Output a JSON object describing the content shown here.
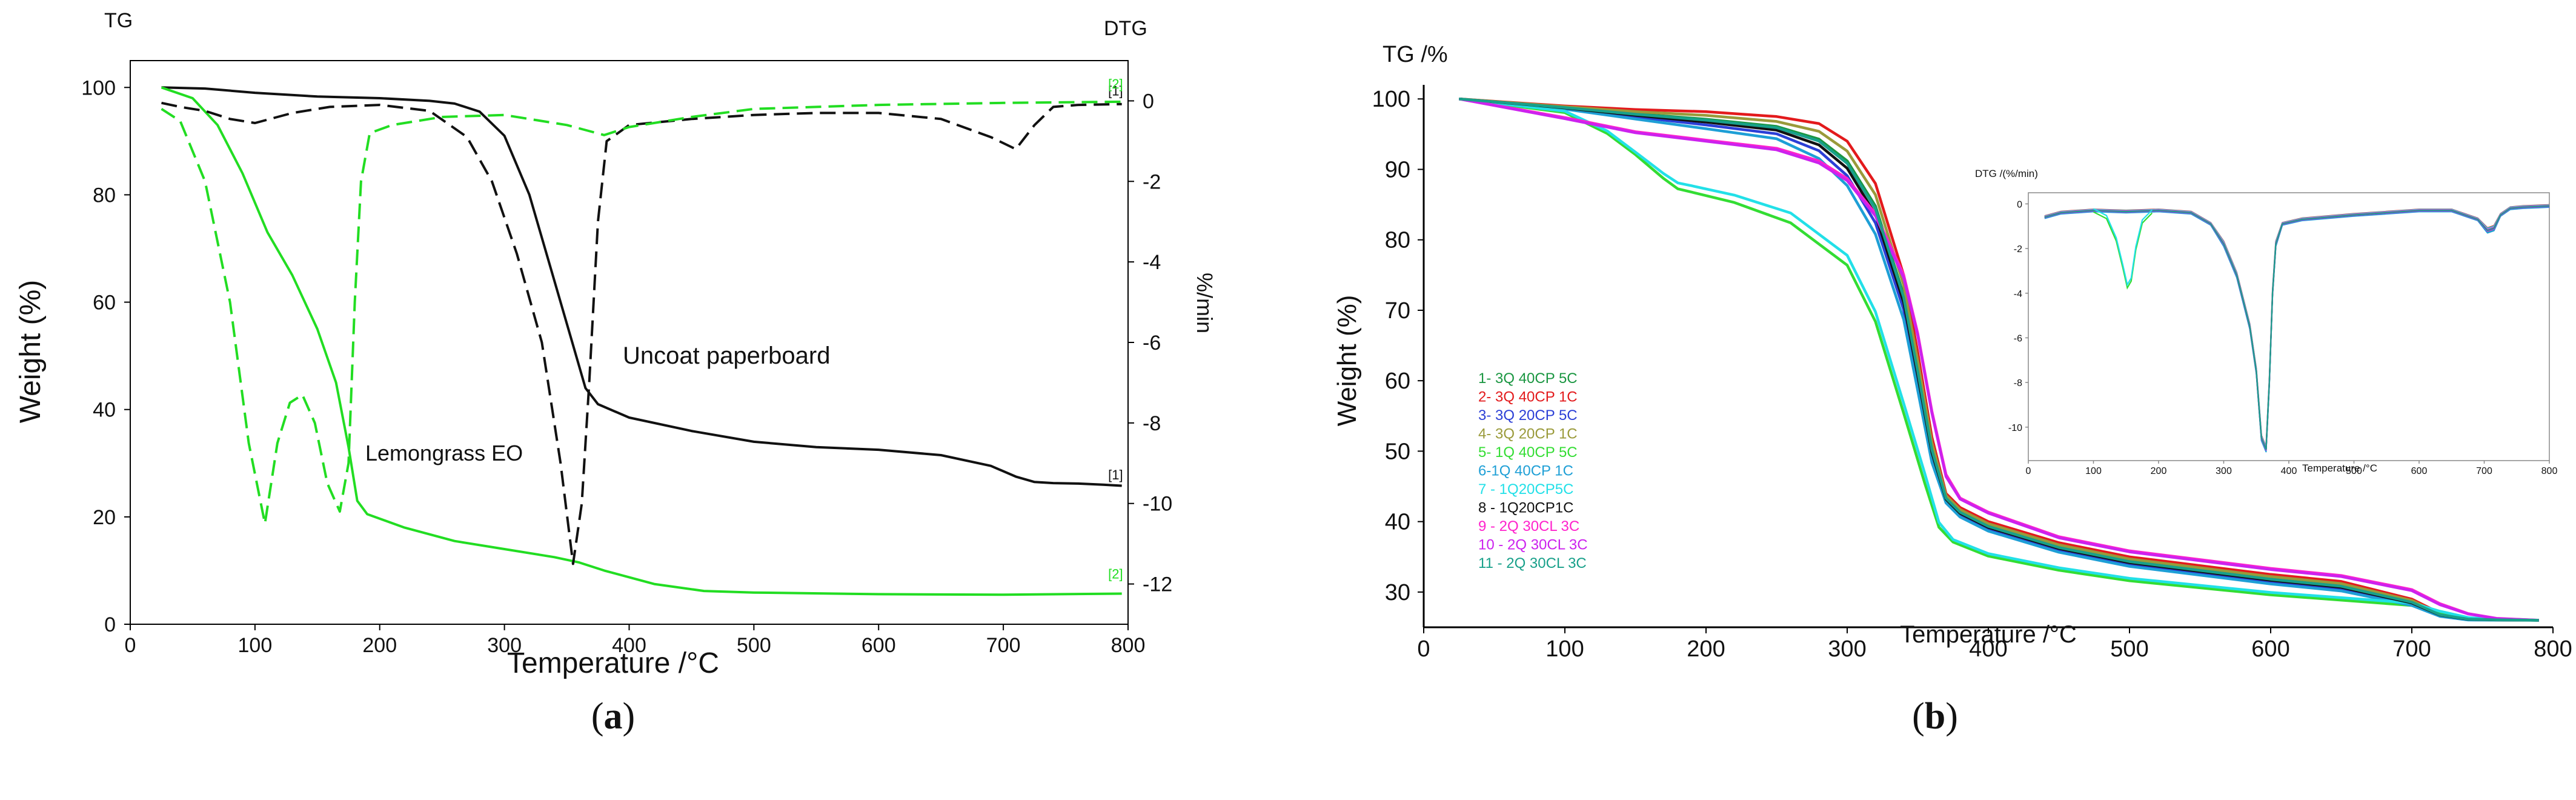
{
  "figure": {
    "caption_a": "(a)",
    "caption_b": "(b)",
    "caption_a_letter": "a",
    "caption_b_letter": "b"
  },
  "colors": {
    "green": "#22dd22",
    "black": "#111111",
    "axis": "#000000",
    "inset_axis": "#888888"
  },
  "chart_data": [
    {
      "id": "a",
      "type": "line",
      "title": "",
      "corner_left": "TG",
      "corner_right": "DTG",
      "xlabel": "Temperature /°C",
      "ylabel": "Weight (%)",
      "y2label": "%/min",
      "xlim": [
        0,
        800
      ],
      "ylim": [
        0,
        105
      ],
      "y2lim": [
        -13,
        1
      ],
      "xticks": [
        0,
        100,
        200,
        300,
        400,
        500,
        600,
        700,
        800
      ],
      "yticks": [
        0,
        20,
        40,
        60,
        80,
        100
      ],
      "y2ticks": [
        0,
        -2,
        -4,
        -6,
        -8,
        -10,
        -12
      ],
      "grid": false,
      "annotations": [
        {
          "text": "Uncoat paperboard",
          "x": 400,
          "y": 49
        },
        {
          "text": "Lemongrass EO",
          "x": 190,
          "y": 30
        }
      ],
      "end_markers": [
        {
          "text": "[1]",
          "x": 790,
          "y": 27,
          "series": "Uncoat paperboard TG"
        },
        {
          "text": "[2]",
          "x": 790,
          "y": 8.5,
          "series": "Lemongrass EO TG"
        },
        {
          "text": "[1]",
          "x": 790,
          "y": 98.5,
          "series": "Uncoat paperboard DTG"
        },
        {
          "text": "[2]",
          "x": 790,
          "y": 99.8,
          "series": "Lemongrass EO DTG"
        }
      ],
      "series": [
        {
          "name": "Uncoat paperboard TG",
          "axis": "y",
          "style": "solid",
          "color": "#111111",
          "x": [
            25,
            60,
            100,
            150,
            200,
            240,
            260,
            280,
            300,
            320,
            340,
            355,
            365,
            375,
            400,
            450,
            500,
            550,
            600,
            650,
            690,
            710,
            725,
            740,
            760,
            780,
            795
          ],
          "y": [
            100,
            99.8,
            99,
            98.3,
            98,
            97.5,
            97,
            95.5,
            91,
            80,
            64,
            52,
            44,
            41,
            38.5,
            36,
            34,
            33,
            32.5,
            31.5,
            29.5,
            27.5,
            26.5,
            26.3,
            26.2,
            26,
            25.8
          ]
        },
        {
          "name": "Lemongrass EO TG",
          "axis": "y",
          "style": "solid",
          "color": "#22dd22",
          "x": [
            25,
            50,
            70,
            90,
            110,
            130,
            150,
            165,
            175,
            182,
            190,
            220,
            260,
            300,
            340,
            360,
            380,
            420,
            460,
            500,
            600,
            700,
            795
          ],
          "y": [
            100,
            98,
            93,
            84,
            73,
            65,
            55,
            45,
            33,
            23,
            20.5,
            18,
            15.5,
            14,
            12.5,
            11.5,
            10,
            7.5,
            6.2,
            5.9,
            5.6,
            5.5,
            5.7
          ]
        },
        {
          "name": "Uncoat paperboard DTG",
          "axis": "y2",
          "style": "dashed",
          "color": "#111111",
          "x": [
            25,
            40,
            60,
            80,
            100,
            130,
            160,
            200,
            240,
            270,
            290,
            310,
            330,
            345,
            355,
            362,
            368,
            375,
            382,
            400,
            450,
            500,
            550,
            600,
            650,
            690,
            710,
            725,
            740,
            760,
            795
          ],
          "y": [
            -0.05,
            -0.15,
            -0.25,
            -0.45,
            -0.55,
            -0.3,
            -0.15,
            -0.1,
            -0.25,
            -0.9,
            -2,
            -3.8,
            -6,
            -9,
            -11.5,
            -10,
            -7,
            -3,
            -1,
            -0.6,
            -0.45,
            -0.35,
            -0.3,
            -0.3,
            -0.45,
            -0.9,
            -1.2,
            -0.6,
            -0.15,
            -0.1,
            -0.08
          ]
        },
        {
          "name": "Lemongrass EO DTG",
          "axis": "y2",
          "style": "dashed",
          "color": "#22dd22",
          "x": [
            25,
            40,
            60,
            80,
            95,
            108,
            118,
            128,
            138,
            148,
            158,
            168,
            175,
            180,
            185,
            192,
            210,
            250,
            300,
            350,
            380,
            400,
            450,
            500,
            600,
            700,
            795
          ],
          "y": [
            -0.2,
            -0.5,
            -2,
            -5,
            -8.5,
            -10.5,
            -8.5,
            -7.5,
            -7.3,
            -8,
            -9.5,
            -10.2,
            -9,
            -5,
            -2,
            -0.8,
            -0.6,
            -0.4,
            -0.35,
            -0.6,
            -0.85,
            -0.65,
            -0.4,
            -0.2,
            -0.1,
            -0.05,
            -0.02
          ]
        }
      ]
    },
    {
      "id": "b",
      "type": "line",
      "title": "",
      "corner_left": "TG /%",
      "xlabel": "Temperature /°C",
      "ylabel": "Weight (%)",
      "xlim": [
        0,
        800
      ],
      "ylim": [
        25,
        102
      ],
      "xticks": [
        0,
        100,
        200,
        300,
        400,
        500,
        600,
        700,
        800
      ],
      "yticks": [
        30,
        40,
        50,
        60,
        70,
        80,
        90,
        100
      ],
      "grid": false,
      "legend_position": "left-middle",
      "series": [
        {
          "name": "1- 3Q 40CP 5C",
          "color": "#1a9641",
          "shape": "A",
          "p": 0.6
        },
        {
          "name": "2- 3Q 40CP 1C",
          "color": "#e31a1c",
          "shape": "A",
          "p": 1.0
        },
        {
          "name": "3- 3Q 20CP 5C",
          "color": "#2b3fd6",
          "shape": "A",
          "p": 0.3
        },
        {
          "name": "4- 3Q 20CP 1C",
          "color": "#9a9a3a",
          "shape": "A",
          "p": 0.8
        },
        {
          "name": "5- 1Q 40CP 5C",
          "color": "#33dd33",
          "shape": "B",
          "p": 0.2
        },
        {
          "name": "6-1Q 40CP 1C",
          "color": "#1e9fd6",
          "shape": "A",
          "p": 0.1
        },
        {
          "name": "7 - 1Q20CP5C",
          "color": "#22e0e8",
          "shape": "B",
          "p": 0.9
        },
        {
          "name": "8 - 1Q20CP1C",
          "color": "#111111",
          "shape": "A",
          "p": 0.45
        },
        {
          "name": "9 - 2Q 30CL 3C",
          "color": "#ff22cc",
          "shape": "C",
          "p": 0.7
        },
        {
          "name": "10 - 2Q 30CL 3C",
          "color": "#cc22ee",
          "shape": "C",
          "p": 0.4
        },
        {
          "name": "11 - 2Q 30CL 3C",
          "color": "#18a08a",
          "shape": "A",
          "p": 0.55
        }
      ],
      "curve_templates": {
        "A": {
          "x": [
            25,
            100,
            150,
            200,
            250,
            280,
            300,
            320,
            340,
            350,
            360,
            370,
            380,
            400,
            450,
            500,
            600,
            650,
            700,
            720,
            740,
            760,
            790
          ],
          "lo": [
            100,
            98.5,
            97,
            95.5,
            94,
            91,
            87,
            80,
            68,
            58,
            48,
            42.5,
            40.5,
            38.5,
            35.5,
            33.5,
            31,
            30,
            28,
            26.5,
            26,
            26,
            26
          ],
          "hi": [
            100,
            99,
            98.5,
            98.2,
            97.5,
            96.5,
            94,
            88,
            75,
            64,
            52,
            44,
            42,
            40,
            37,
            35,
            32.5,
            31.5,
            29,
            27,
            26.3,
            26.1,
            26
          ]
        },
        "B": {
          "x": [
            25,
            100,
            130,
            150,
            170,
            180,
            190,
            220,
            260,
            300,
            320,
            340,
            355,
            365,
            375,
            400,
            450,
            500,
            600,
            700,
            720,
            740,
            760,
            790
          ],
          "lo": [
            100,
            98,
            95,
            92,
            88.5,
            87,
            86.5,
            85,
            82,
            76,
            68,
            55,
            45,
            39,
            37,
            35,
            33,
            31.5,
            29.5,
            28,
            27,
            26.2,
            26,
            26
          ],
          "hi": [
            100,
            98.3,
            95.5,
            92.5,
            89.5,
            88.2,
            87.8,
            86.5,
            84,
            78,
            70,
            57,
            47,
            40,
            37.5,
            35.5,
            33.5,
            32,
            30,
            28.5,
            27.3,
            26.4,
            26.1,
            26
          ]
        },
        "C": {
          "x": [
            25,
            100,
            150,
            200,
            250,
            280,
            300,
            320,
            340,
            350,
            360,
            370,
            380,
            400,
            450,
            500,
            600,
            650,
            700,
            720,
            740,
            760,
            790
          ],
          "lo": [
            100,
            97,
            95,
            93.8,
            92.5,
            90.5,
            88,
            83,
            74,
            66,
            55,
            46,
            43,
            41,
            37.5,
            35.5,
            33,
            32,
            30,
            28,
            26.8,
            26.2,
            26
          ],
          "hi": [
            100,
            97.5,
            95.5,
            94.3,
            93.2,
            91.5,
            89,
            84,
            75.5,
            67,
            56,
            47,
            43.5,
            41.5,
            38,
            36,
            33.5,
            32.5,
            30.5,
            28.5,
            27,
            26.3,
            26
          ]
        }
      },
      "inset": {
        "ylabel": "DTG /(%/min)",
        "xlabel": "Temperature /°C",
        "xlim": [
          0,
          800
        ],
        "ylim": [
          -11.5,
          0.5
        ],
        "xticks": [
          0,
          100,
          200,
          300,
          400,
          500,
          600,
          700,
          800
        ],
        "yticks": [
          0,
          -2,
          -4,
          -6,
          -8,
          -10
        ],
        "template": {
          "x": [
            25,
            50,
            100,
            150,
            200,
            250,
            280,
            300,
            320,
            340,
            350,
            358,
            365,
            370,
            375,
            380,
            390,
            420,
            500,
            600,
            650,
            690,
            705,
            715,
            725,
            740,
            760,
            800
          ],
          "y": [
            -0.6,
            -0.4,
            -0.3,
            -0.35,
            -0.3,
            -0.4,
            -0.9,
            -1.8,
            -3.2,
            -5.5,
            -7.5,
            -10.5,
            -11,
            -8,
            -4,
            -1.8,
            -0.9,
            -0.7,
            -0.5,
            -0.3,
            -0.3,
            -0.7,
            -1.2,
            -1.1,
            -0.5,
            -0.2,
            -0.15,
            -0.1
          ]
        },
        "green_bump": {
          "x": [
            100,
            120,
            135,
            145,
            152,
            158,
            165,
            175,
            190
          ],
          "y": [
            -0.3,
            -0.6,
            -1.6,
            -2.8,
            -3.7,
            -3.4,
            -2,
            -0.8,
            -0.35
          ]
        }
      }
    }
  ]
}
